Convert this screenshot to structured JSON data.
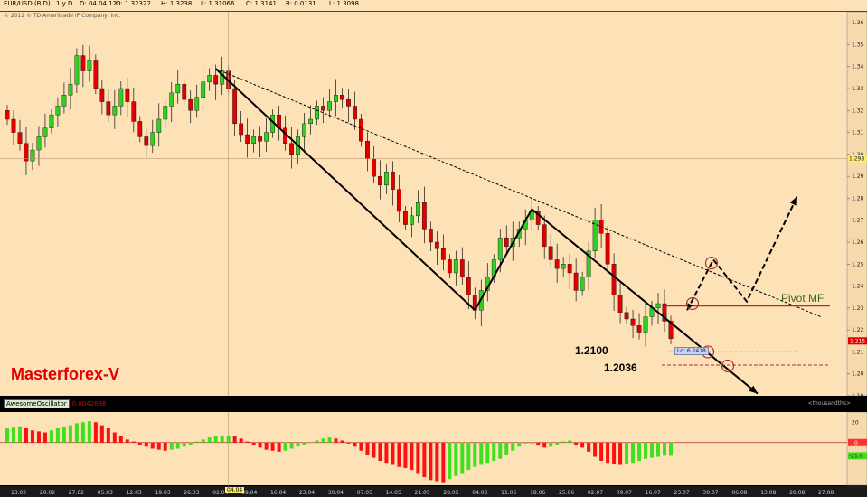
{
  "header": {
    "symbol": "EUR/USD (BID)",
    "timeframe": "1 y D",
    "date": "D: 04.04.12",
    "open": "O: 1.32322",
    "high": "H: 1.3238",
    "low": "L: 1.31066",
    "close": "C: 1.3141",
    "range": "R: 0.0131",
    "last": "L: 1.3098"
  },
  "copyright": "© 2012 © TD Ameritrade IP Company, Inc.",
  "brand": "Masterforex-V",
  "annotations": {
    "level1": "1.2100",
    "level2": "1.2036",
    "pivot": "Pivot MF",
    "ttl_label": "Lo: 6.2418"
  },
  "oscillator": {
    "label": "AwesomeOscillator",
    "value": "0.0042686",
    "units": "<thousandths>"
  },
  "colors": {
    "background": "#fde2b8",
    "up": "#2fd021",
    "down": "#e00000",
    "ao_up": "#40e020",
    "ao_down": "#ff1010"
  },
  "chart_data": {
    "type": "candlestick",
    "ylim": [
      1.19,
      1.365
    ],
    "y_ticks": [
      1.36,
      1.35,
      1.34,
      1.33,
      1.32,
      1.31,
      1.3,
      1.29,
      1.28,
      1.27,
      1.26,
      1.25,
      1.24,
      1.23,
      1.22,
      1.21,
      1.2,
      1.19
    ],
    "current_price": "1.215",
    "crosshair_price": "1.298",
    "x_tick_labels": [
      "13.02",
      "20.02",
      "27.02",
      "05.03",
      "12.03",
      "19.03",
      "26.03",
      "02.04",
      "09.04",
      "16.04",
      "23.04",
      "30.04",
      "07.05",
      "14.05",
      "21.05",
      "28.05",
      "04.06",
      "11.06",
      "18.06",
      "25.06",
      "02.07",
      "09.07",
      "16.07",
      "23.07",
      "30.07",
      "06.08",
      "13.08",
      "20.08",
      "27.08"
    ],
    "selected_date": "04.04",
    "closes": [
      1.316,
      1.31,
      1.305,
      1.297,
      1.302,
      1.308,
      1.312,
      1.318,
      1.322,
      1.327,
      1.332,
      1.345,
      1.338,
      1.343,
      1.33,
      1.324,
      1.318,
      1.322,
      1.33,
      1.324,
      1.315,
      1.308,
      1.304,
      1.31,
      1.316,
      1.322,
      1.328,
      1.332,
      1.325,
      1.32,
      1.326,
      1.333,
      1.336,
      1.332,
      1.338,
      1.33,
      1.314,
      1.309,
      1.305,
      1.308,
      1.306,
      1.31,
      1.318,
      1.312,
      1.305,
      1.3,
      1.308,
      1.314,
      1.316,
      1.322,
      1.32,
      1.324,
      1.327,
      1.325,
      1.322,
      1.316,
      1.306,
      1.298,
      1.29,
      1.286,
      1.292,
      1.284,
      1.274,
      1.268,
      1.272,
      1.278,
      1.266,
      1.26,
      1.257,
      1.252,
      1.246,
      1.252,
      1.244,
      1.236,
      1.229,
      1.238,
      1.244,
      1.252,
      1.262,
      1.258,
      1.262,
      1.266,
      1.27,
      1.274,
      1.268,
      1.258,
      1.252,
      1.248,
      1.25,
      1.246,
      1.238,
      1.244,
      1.256,
      1.27,
      1.264,
      1.25,
      1.236,
      1.228,
      1.225,
      1.222,
      1.219,
      1.226,
      1.23,
      1.232,
      1.224,
      1.216
    ],
    "trendlines": [
      {
        "name": "descending-resistance",
        "style": "dashed",
        "from": [
          "02.04",
          1.339
        ],
        "to": [
          "end",
          1.226
        ]
      },
      {
        "name": "wave-1",
        "style": "solid",
        "from": [
          "02.04",
          1.339
        ],
        "to": [
          "31.05",
          1.229
        ]
      },
      {
        "name": "wave-2",
        "style": "solid",
        "from": [
          "31.05",
          1.229
        ],
        "to": [
          "19.06",
          1.275
        ]
      },
      {
        "name": "wave-3",
        "style": "solid-arrow",
        "from": [
          "19.06",
          1.275
        ],
        "to": [
          "end",
          1.191
        ]
      }
    ],
    "levels": [
      {
        "name": "pivot-mf",
        "price": 1.231
      },
      {
        "name": "level-1.2100",
        "price": 1.21
      },
      {
        "name": "level-1.2036",
        "price": 1.204
      }
    ],
    "projection": {
      "style": "dashed-arrow",
      "prices": [
        1.229,
        1.252,
        1.233,
        1.281
      ]
    },
    "oscillator": {
      "type": "bar",
      "name": "AwesomeOscillator",
      "zero_label": "0",
      "tick_labels": [
        "20",
        "-21.6"
      ],
      "ylim": [
        -42,
        30
      ],
      "values": [
        14,
        15,
        16,
        14,
        12,
        11,
        10,
        12,
        14,
        15,
        17,
        19,
        20,
        21,
        20,
        17,
        14,
        10,
        6,
        3,
        1,
        -2,
        -4,
        -6,
        -7,
        -8,
        -7,
        -6,
        -4,
        -2,
        1,
        3,
        5,
        6,
        7,
        7,
        6,
        4,
        1,
        -2,
        -5,
        -7,
        -8,
        -9,
        -8,
        -6,
        -4,
        -2,
        0,
        2,
        4,
        5,
        4,
        2,
        -1,
        -4,
        -8,
        -12,
        -15,
        -18,
        -20,
        -22,
        -24,
        -25,
        -27,
        -30,
        -34,
        -37,
        -38,
        -39,
        -36,
        -33,
        -30,
        -27,
        -24,
        -22,
        -20,
        -18,
        -16,
        -12,
        -8,
        -4,
        -1,
        -1,
        -3,
        -5,
        -4,
        -2,
        1,
        2,
        -2,
        -5,
        -9,
        -14,
        -18,
        -20,
        -21,
        -22,
        -21,
        -20,
        -18,
        -16,
        -15,
        -14,
        -13,
        -13
      ]
    }
  }
}
